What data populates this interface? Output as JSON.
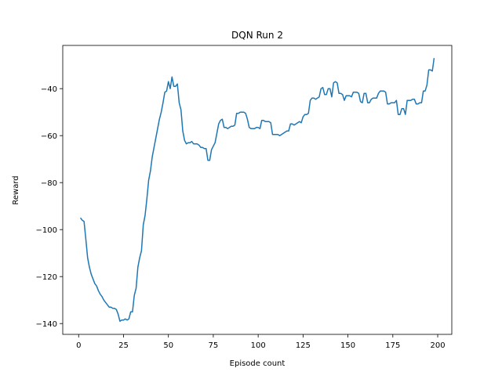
{
  "chart_data": {
    "type": "line",
    "title": "DQN Run 2",
    "x_label": "Episode count",
    "y_label": "Reward",
    "x": [
      1,
      2,
      3,
      4,
      5,
      6,
      7,
      8,
      9,
      10,
      11,
      12,
      13,
      14,
      15,
      16,
      17,
      18,
      19,
      20,
      21,
      22,
      23,
      24,
      25,
      26,
      27,
      28,
      29,
      30,
      31,
      32,
      33,
      34,
      35,
      36,
      37,
      38,
      39,
      40,
      41,
      42,
      43,
      44,
      45,
      46,
      47,
      48,
      49,
      50,
      51,
      52,
      53,
      54,
      55,
      56,
      57,
      58,
      59,
      60,
      61,
      62,
      63,
      64,
      65,
      66,
      67,
      68,
      69,
      70,
      71,
      72,
      73,
      74,
      75,
      76,
      77,
      78,
      79,
      80,
      81,
      82,
      83,
      84,
      85,
      86,
      87,
      88,
      89,
      90,
      91,
      92,
      93,
      94,
      95,
      96,
      97,
      98,
      99,
      100,
      101,
      102,
      103,
      104,
      105,
      106,
      107,
      108,
      109,
      110,
      111,
      112,
      113,
      114,
      115,
      116,
      117,
      118,
      119,
      120,
      121,
      122,
      123,
      124,
      125,
      126,
      127,
      128,
      129,
      130,
      131,
      132,
      133,
      134,
      135,
      136,
      137,
      138,
      139,
      140,
      141,
      142,
      143,
      144,
      145,
      146,
      147,
      148,
      149,
      150,
      151,
      152,
      153,
      154,
      155,
      156,
      157,
      158,
      159,
      160,
      161,
      162,
      163,
      164,
      165,
      166,
      167,
      168,
      169,
      170,
      171,
      172,
      173,
      174,
      175,
      176,
      177,
      178,
      179,
      180,
      181,
      182,
      183,
      184,
      185,
      186,
      187,
      188,
      189,
      190,
      191,
      192,
      193,
      194,
      195,
      196,
      197,
      198
    ],
    "series": [
      {
        "name": "reward",
        "color": "#1f77b4",
        "values": [
          -95,
          -96,
          -96.5,
          -104,
          -112,
          -116,
          -119,
          -121,
          -123,
          -124,
          -126,
          -127.5,
          -128.5,
          -130,
          -131,
          -132,
          -133,
          -133,
          -133.5,
          -133.5,
          -134,
          -136,
          -139,
          -138.5,
          -138.5,
          -138,
          -138.5,
          -138,
          -135,
          -135,
          -128,
          -125,
          -116,
          -112,
          -109,
          -98,
          -94,
          -87,
          -79,
          -75,
          -69,
          -65,
          -61,
          -57,
          -53,
          -50,
          -46,
          -41.5,
          -41,
          -37,
          -40,
          -35,
          -39,
          -39,
          -38,
          -46,
          -49,
          -58,
          -62,
          -63.5,
          -63,
          -63,
          -62.5,
          -63.5,
          -63.5,
          -63.5,
          -64,
          -65,
          -65,
          -65.5,
          -65.5,
          -70.5,
          -70.5,
          -66,
          -64.5,
          -63,
          -59,
          -55,
          -53.5,
          -53,
          -56.5,
          -56.5,
          -57,
          -56.5,
          -56,
          -56,
          -55.5,
          -50.5,
          -50.5,
          -50,
          -50,
          -50,
          -50.5,
          -53,
          -56.5,
          -57,
          -57,
          -57,
          -56.5,
          -56.5,
          -57,
          -53.5,
          -53.5,
          -54,
          -54,
          -54,
          -54.5,
          -59.5,
          -59.5,
          -59.5,
          -59.5,
          -60,
          -59.5,
          -59,
          -58.5,
          -58,
          -58,
          -55,
          -55,
          -55.5,
          -55,
          -54.5,
          -54,
          -54.5,
          -52,
          -51,
          -51,
          -50.5,
          -45,
          -44,
          -44,
          -44.5,
          -44,
          -43.5,
          -40,
          -39.5,
          -42.5,
          -42.5,
          -40,
          -40,
          -43.5,
          -37.5,
          -37,
          -37.5,
          -42,
          -42,
          -42.5,
          -45,
          -43,
          -43,
          -43,
          -43.5,
          -41.5,
          -41.5,
          -41.5,
          -42,
          -45.5,
          -46,
          -42,
          -42,
          -46,
          -46,
          -44.5,
          -44,
          -44,
          -44,
          -42,
          -41,
          -41,
          -41,
          -41.5,
          -46.5,
          -46.5,
          -46,
          -46,
          -46,
          -45,
          -51,
          -51,
          -48.5,
          -48.5,
          -51,
          -45,
          -45,
          -45,
          -44.5,
          -44.5,
          -46.5,
          -46.5,
          -46,
          -46,
          -41,
          -41,
          -38.5,
          -32,
          -32,
          -32.5,
          -27
        ]
      }
    ],
    "xlim": [
      -8.85,
      207.85
    ],
    "xticks": [
      0,
      25,
      50,
      75,
      100,
      125,
      150,
      175,
      200
    ],
    "ylim": [
      -144.6,
      -21.6
    ],
    "yticks": [
      {
        "value": -140,
        "label": "−140"
      },
      {
        "value": -120,
        "label": "−120"
      },
      {
        "value": -100,
        "label": "−100"
      },
      {
        "value": -80,
        "label": "−80"
      },
      {
        "value": -60,
        "label": "−60"
      },
      {
        "value": -40,
        "label": "−40"
      }
    ],
    "grid": false
  }
}
